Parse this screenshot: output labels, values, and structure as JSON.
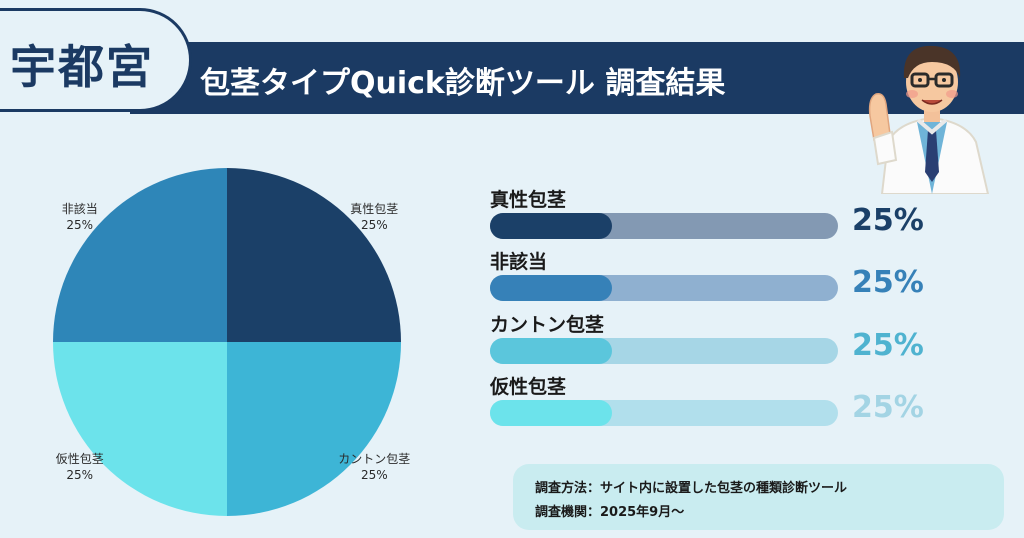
{
  "city": "宇都宮",
  "title": "包茎タイプQuick診断ツール 調査結果",
  "chart_data": {
    "type": "pie",
    "categories": [
      "真性包茎",
      "カントン包茎",
      "仮性包茎",
      "非該当"
    ],
    "values": [
      25,
      25,
      25,
      25
    ],
    "percent_labels": [
      "25%",
      "25%",
      "25%",
      "25%"
    ],
    "colors": [
      "#1b4068",
      "#3db5d6",
      "#6ce3eb",
      "#2e86b8"
    ]
  },
  "bars": [
    {
      "label": "真性包茎",
      "value": 25,
      "pct": "25%",
      "fill": "#1b4068",
      "track": "#8399b3",
      "text_color": "#1b4068"
    },
    {
      "label": "非該当",
      "value": 25,
      "pct": "25%",
      "fill": "#3681b8",
      "track": "#8fb0d0",
      "text_color": "#3681b8"
    },
    {
      "label": "カントン包茎",
      "value": 25,
      "pct": "25%",
      "fill": "#5bc6dc",
      "track": "#a6d6e6",
      "text_color": "#4fb3d0"
    },
    {
      "label": "仮性包茎",
      "value": 25,
      "pct": "25%",
      "fill": "#6ce3eb",
      "track": "#b1dfec",
      "text_color": "#a3d4e4"
    }
  ],
  "note": {
    "method": "調査方法：サイト内に設置した包茎の種類診断ツール",
    "period": "調査機関：2025年9月〜"
  },
  "icons": {
    "doctor": "doctor-illustration"
  }
}
